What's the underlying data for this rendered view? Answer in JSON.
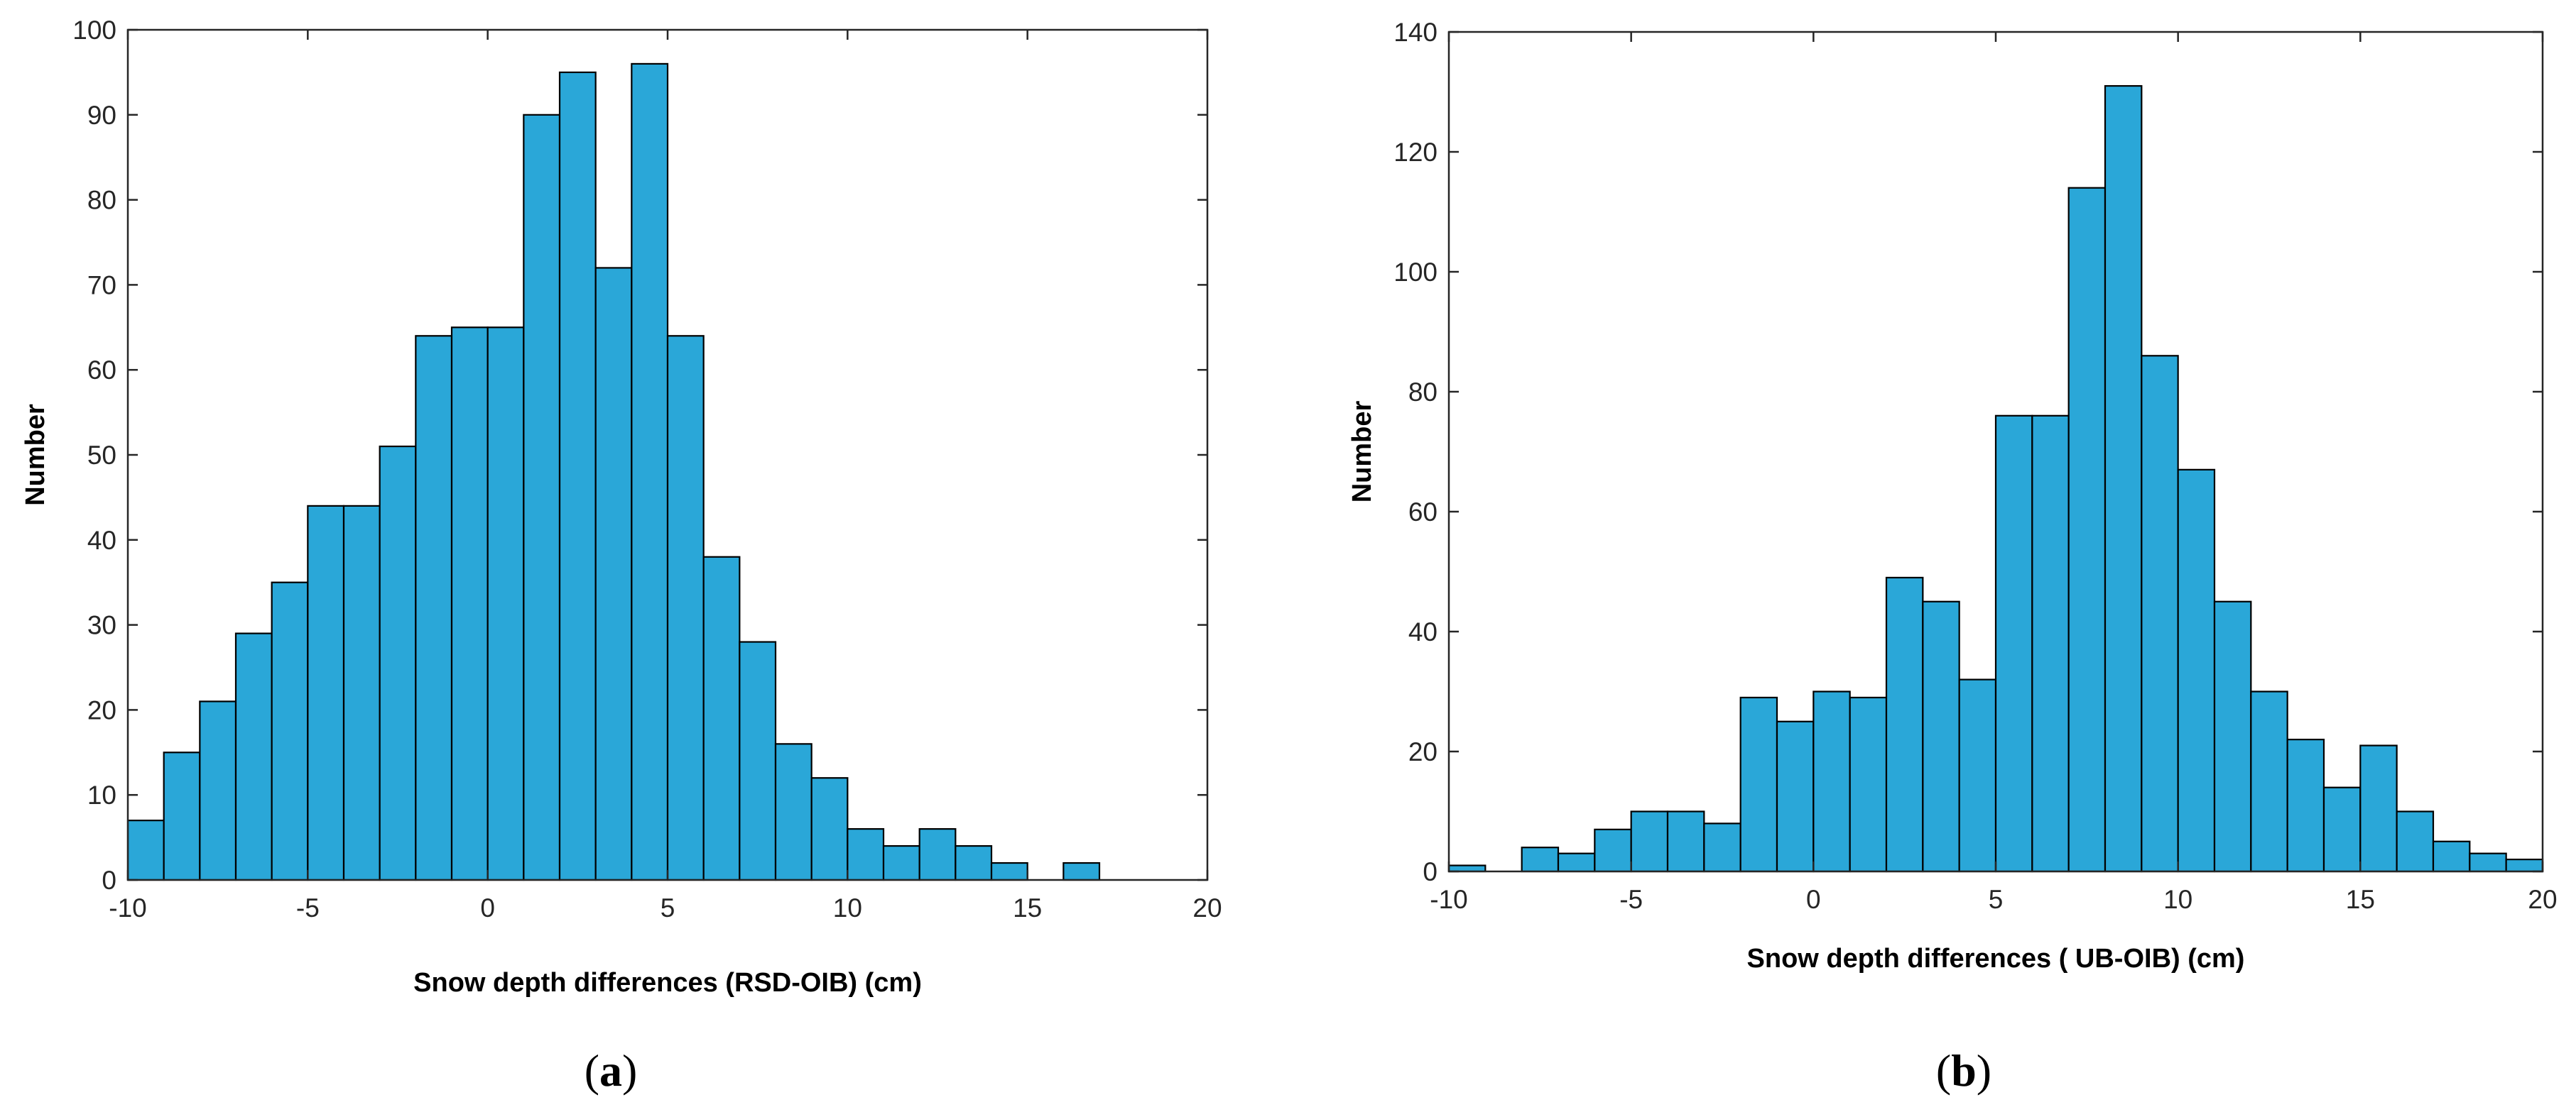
{
  "chart_data": [
    {
      "type": "bar",
      "id": "a",
      "panel_label": "(a)",
      "caption_open": "(",
      "caption_letter": "a",
      "caption_close": ")",
      "xlabel": "Snow depth differences (RSD-OIB) (cm)",
      "ylabel": "Number",
      "xlim": [
        -10,
        20
      ],
      "ylim": [
        0,
        100
      ],
      "xticks": [
        -10,
        -5,
        0,
        5,
        10,
        15,
        20
      ],
      "xtick_labels": [
        "-10",
        "-5",
        "0",
        "5",
        "10",
        "15",
        "20"
      ],
      "yticks": [
        0,
        10,
        20,
        30,
        40,
        50,
        60,
        70,
        80,
        90,
        100
      ],
      "ytick_labels": [
        "0",
        "10",
        "20",
        "30",
        "40",
        "50",
        "60",
        "70",
        "80",
        "90",
        "100"
      ],
      "bin_start": -10,
      "bin_width": 1,
      "values": [
        7,
        15,
        21,
        29,
        35,
        44,
        44,
        51,
        64,
        65,
        65,
        90,
        95,
        72,
        96,
        64,
        38,
        28,
        16,
        12,
        6,
        4,
        6,
        4,
        2,
        0,
        2
      ]
    },
    {
      "type": "bar",
      "id": "b",
      "panel_label": "(b)",
      "caption_open": "(",
      "caption_letter": "b",
      "caption_close": ")",
      "xlabel": "Snow depth differences ( UB-OIB) (cm)",
      "ylabel": "Number",
      "xlim": [
        -10,
        20
      ],
      "ylim": [
        0,
        140
      ],
      "xticks": [
        -10,
        -5,
        0,
        5,
        10,
        15,
        20
      ],
      "xtick_labels": [
        "-10",
        "-5",
        "0",
        "5",
        "10",
        "15",
        "20"
      ],
      "yticks": [
        0,
        20,
        40,
        60,
        80,
        100,
        120,
        140
      ],
      "ytick_labels": [
        "0",
        "20",
        "40",
        "60",
        "80",
        "100",
        "120",
        "140"
      ],
      "bin_start": -10,
      "bin_width": 1,
      "values": [
        1,
        0,
        4,
        3,
        7,
        10,
        10,
        8,
        29,
        25,
        30,
        29,
        49,
        45,
        32,
        76,
        76,
        114,
        131,
        86,
        67,
        45,
        30,
        22,
        14,
        21,
        10,
        5,
        3,
        2
      ]
    }
  ]
}
